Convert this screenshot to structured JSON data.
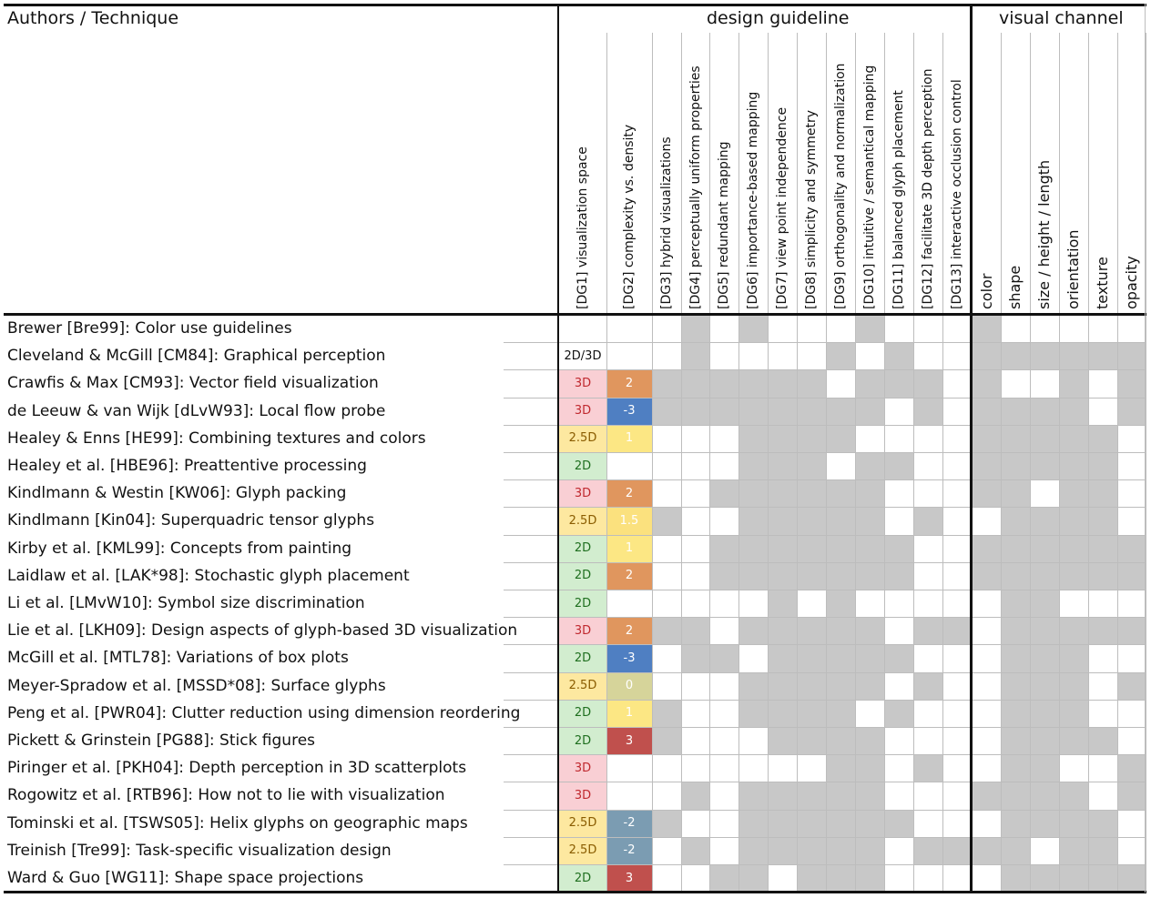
{
  "header": {
    "authors_title": "Authors / Technique",
    "design_title": "design guideline",
    "visual_title": "visual channel"
  },
  "columns": {
    "design": [
      "[DG1] visualization space",
      "[DG2] complexity vs. density",
      "[DG3] hybrid visualizations",
      "[DG4] perceptually uniform properties",
      "[DG5] redundant mapping",
      "[DG6] importance-based mapping",
      "[DG7] view point independence",
      "[DG8] simplicity and symmetry",
      "[DG9] orthogonality and normalization",
      "[DG10] intuitive / semantical mapping",
      "[DG11] balanced glyph placement",
      "[DG12] facilitate 3D depth perception",
      "[DG13] interactive occlusion control"
    ],
    "visual": [
      "color",
      "shape",
      "size / height / length",
      "orientation",
      "texture",
      "opacity"
    ]
  },
  "colors": {
    "grey": "#c8c8c8",
    "space_3d": "#f9cfd4",
    "space_25d": "#fde8a0",
    "space_2d": "#d2edcf",
    "space_2d3d": "#ffffff",
    "cx_2": "#e0965e",
    "cx_1": "#fce784",
    "cx_15": "#fbe17e",
    "cx_0": "#d6d49a",
    "cx_3": "#c0504d",
    "cx_m3": "#4f7fc2",
    "cx_m2": "#7b9cb2"
  },
  "rows": [
    {
      "label": "Brewer [Bre99]: Color use guidelines",
      "space": "",
      "cx": "",
      "dg": "0001010001000",
      "vc": "100000"
    },
    {
      "label": "Cleveland & McGill [CM84]: Graphical perception",
      "space": "2D/3D",
      "cx": "",
      "dg": "0001000010100",
      "vc": "111111"
    },
    {
      "label": "Crawfis & Max [CM93]: Vector field visualization",
      "space": "3D",
      "cx": "2",
      "dg": "1111111101110",
      "vc": "100101"
    },
    {
      "label": "de Leeuw & van Wijk [dLvW93]: Local flow probe",
      "space": "3D",
      "cx": "-3",
      "dg": "1111111111010",
      "vc": "111101"
    },
    {
      "label": "Healey & Enns [HE99]: Combining textures and colors",
      "space": "2.5D",
      "cx": "1",
      "dg": "1100011110000",
      "vc": "111110"
    },
    {
      "label": "Healey et al. [HBE96]: Preattentive processing",
      "space": "2D",
      "cx": "",
      "dg": "1100011101100",
      "vc": "111110"
    },
    {
      "label": "Kindlmann & Westin [KW06]: Glyph packing",
      "space": "3D",
      "cx": "2",
      "dg": "1100111111000",
      "vc": "110110"
    },
    {
      "label": "Kindlmann [Kin04]: Superquadric tensor glyphs",
      "space": "2.5D",
      "cx": "1.5",
      "dg": "1110011111010",
      "vc": "011110"
    },
    {
      "label": "Kirby et al. [KML99]: Concepts from painting",
      "space": "2D",
      "cx": "1",
      "dg": "1100111111100",
      "vc": "111111"
    },
    {
      "label": "Laidlaw et al. [LAK*98]: Stochastic glyph placement",
      "space": "2D",
      "cx": "2",
      "dg": "1100111111100",
      "vc": "111111"
    },
    {
      "label": "Li et al. [LMvW10]: Symbol size discrimination",
      "space": "2D",
      "cx": "",
      "dg": "0100001010000",
      "vc": "011000"
    },
    {
      "label": "Lie et al. [LKH09]: Design aspects of glyph-based 3D visualization",
      "space": "3D",
      "cx": "2",
      "dg": "1111011111011",
      "vc": "011111"
    },
    {
      "label": "McGill et al. [MTL78]: Variations of box plots",
      "space": "2D",
      "cx": "-3",
      "dg": "1001101111100",
      "vc": "011100"
    },
    {
      "label": "Meyer-Spradow et al. [MSSD*08]: Surface glyphs",
      "space": "2.5D",
      "cx": "0",
      "dg": "1000011111010",
      "vc": "011101"
    },
    {
      "label": "Peng et al. [PWR04]: Clutter reduction using dimension reordering",
      "space": "2D",
      "cx": "1",
      "dg": "0110011110100",
      "vc": "011100"
    },
    {
      "label": "Pickett & Grinstein [PG88]: Stick figures",
      "space": "2D",
      "cx": "3",
      "dg": "0110001111000",
      "vc": "011110"
    },
    {
      "label": "Piringer et al. [PKH04]: Depth perception in 3D scatterplots",
      "space": "3D",
      "cx": "",
      "dg": "0000000011010",
      "vc": "011001"
    },
    {
      "label": "Rogowitz et al. [RTB96]: How not to lie with visualization",
      "space": "3D",
      "cx": "",
      "dg": "1101011111000",
      "vc": "111101"
    },
    {
      "label": "Tominski et al. [TSWS05]: Helix glyphs on geographic maps",
      "space": "2.5D",
      "cx": "-2",
      "dg": "1010011111100",
      "vc": "011110"
    },
    {
      "label": "Treinish [Tre99]: Task-specific visualization design",
      "space": "2.5D",
      "cx": "-2",
      "dg": "1101011111011",
      "vc": "110110"
    },
    {
      "label": "Ward & Guo [WG11]: Shape space projections",
      "space": "2D",
      "cx": "3",
      "dg": "1000110111000",
      "vc": "011111"
    }
  ]
}
